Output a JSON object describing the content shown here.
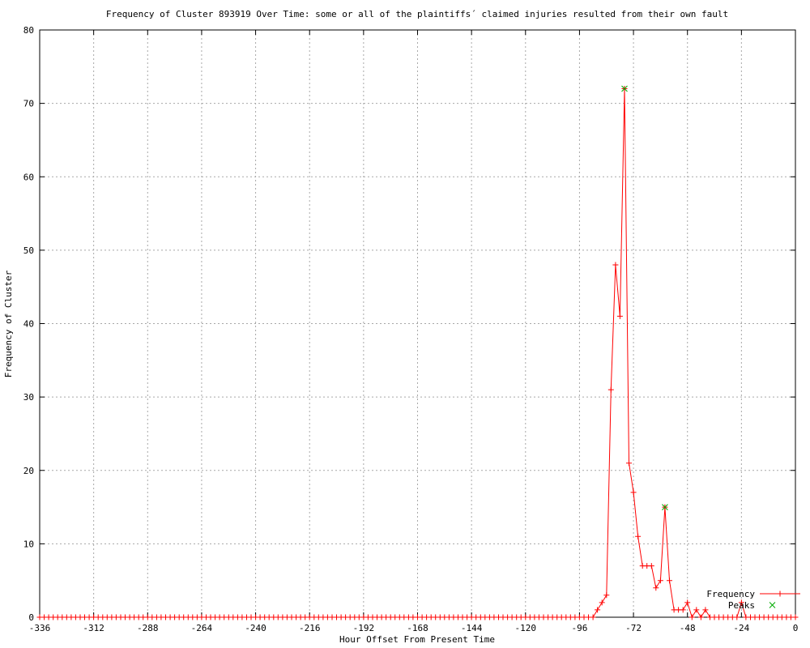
{
  "title": "Frequency of Cluster 893919 Over Time: some or all of the plaintiffs´ claimed injuries resulted from their own fault",
  "colors": {
    "frequency_line": "#ff0000",
    "peaks_marker": "#00aa00",
    "grid": "#a8a8a8",
    "border": "#000000",
    "background": "#ffffff",
    "text": "#000000"
  },
  "legend": {
    "items": [
      {
        "label": "Frequency",
        "marker": "plus-with-line",
        "color": "#ff0000"
      },
      {
        "label": "Peaks",
        "marker": "cross",
        "color": "#00aa00"
      }
    ]
  },
  "chart_data": {
    "type": "line",
    "title": "Frequency of Cluster 893919 Over Time: some or all of the plaintiffs´ claimed injuries resulted from their own fault",
    "xlabel": "Hour Offset From Present Time",
    "ylabel": "Frequency of Cluster",
    "xlim": [
      -336,
      0
    ],
    "ylim": [
      0,
      80
    ],
    "x_ticks": [
      -336,
      -312,
      -288,
      -264,
      -240,
      -216,
      -192,
      -168,
      -144,
      -120,
      -96,
      -72,
      -48,
      -24,
      0
    ],
    "y_ticks": [
      0,
      10,
      20,
      30,
      40,
      50,
      60,
      70,
      80
    ],
    "grid": true,
    "legend_position": "inside-bottom-right",
    "x_start": -336,
    "x_step": 2,
    "series": [
      {
        "name": "Frequency",
        "style": "linespoints",
        "marker": "plus",
        "color": "#ff0000",
        "values": [
          0,
          0,
          0,
          0,
          0,
          0,
          0,
          0,
          0,
          0,
          0,
          0,
          0,
          0,
          0,
          0,
          0,
          0,
          0,
          0,
          0,
          0,
          0,
          0,
          0,
          0,
          0,
          0,
          0,
          0,
          0,
          0,
          0,
          0,
          0,
          0,
          0,
          0,
          0,
          0,
          0,
          0,
          0,
          0,
          0,
          0,
          0,
          0,
          0,
          0,
          0,
          0,
          0,
          0,
          0,
          0,
          0,
          0,
          0,
          0,
          0,
          0,
          0,
          0,
          0,
          0,
          0,
          0,
          0,
          0,
          0,
          0,
          0,
          0,
          0,
          0,
          0,
          0,
          0,
          0,
          0,
          0,
          0,
          0,
          0,
          0,
          0,
          0,
          0,
          0,
          0,
          0,
          0,
          0,
          0,
          0,
          0,
          0,
          0,
          0,
          0,
          0,
          0,
          0,
          0,
          0,
          0,
          0,
          0,
          0,
          0,
          0,
          0,
          0,
          0,
          0,
          0,
          0,
          0,
          0,
          0,
          0,
          0,
          0,
          1,
          2,
          3,
          31,
          48,
          41,
          72,
          21,
          17,
          11,
          7,
          7,
          7,
          4,
          5,
          15,
          5,
          1,
          1,
          1,
          2,
          0,
          1,
          0,
          1,
          0,
          0,
          0,
          0,
          0,
          0,
          0,
          2,
          0,
          0,
          0,
          0,
          0,
          0,
          0,
          0,
          0,
          0,
          0,
          0
        ]
      },
      {
        "name": "Peaks",
        "style": "points",
        "marker": "cross",
        "color": "#00aa00",
        "points": [
          {
            "x": -76,
            "y": 72
          },
          {
            "x": -58,
            "y": 15
          }
        ]
      }
    ]
  }
}
